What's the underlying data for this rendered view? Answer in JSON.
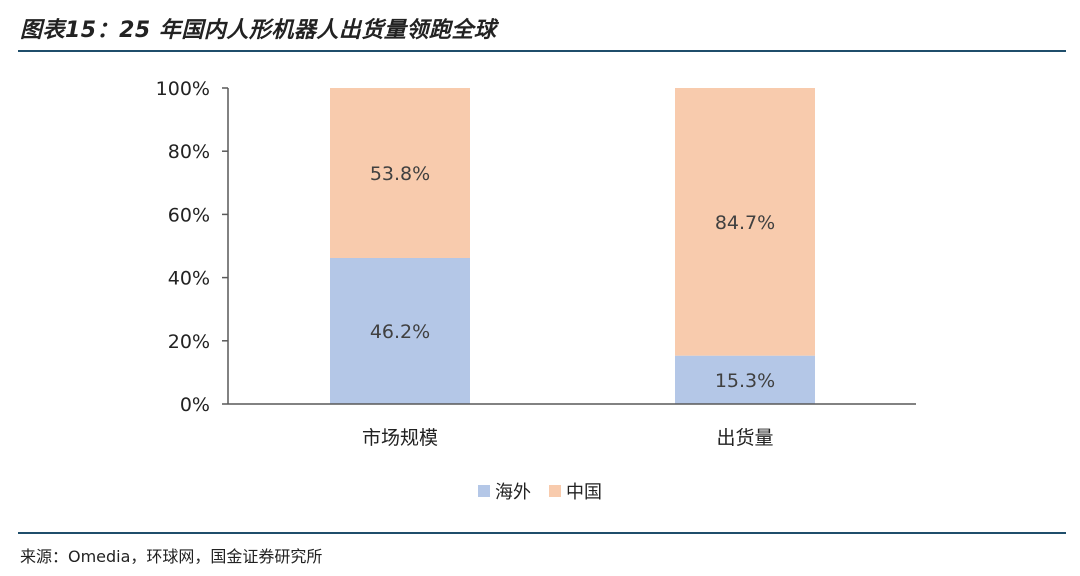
{
  "header": {
    "title": "图表15：25 年国内人形机器人出货量领跑全球"
  },
  "footer": {
    "source": "来源：Omedia，环球网，国金证券研究所"
  },
  "colors": {
    "overseas": "#b4c7e7",
    "china": "#f8cbad",
    "axis": "#595959",
    "rule": "#1f4e6b"
  },
  "chart_data": {
    "type": "bar",
    "stacked": true,
    "categories": [
      "市场规模",
      "出货量"
    ],
    "series": [
      {
        "name": "海外",
        "values": [
          46.2,
          15.3
        ],
        "labels": [
          "46.2%",
          "15.3%"
        ]
      },
      {
        "name": "中国",
        "values": [
          53.8,
          84.7
        ],
        "labels": [
          "53.8%",
          "84.7%"
        ]
      }
    ],
    "yticks": [
      "0%",
      "20%",
      "40%",
      "60%",
      "80%",
      "100%"
    ],
    "ylim": [
      0,
      100
    ],
    "legend": "bottom-center"
  }
}
